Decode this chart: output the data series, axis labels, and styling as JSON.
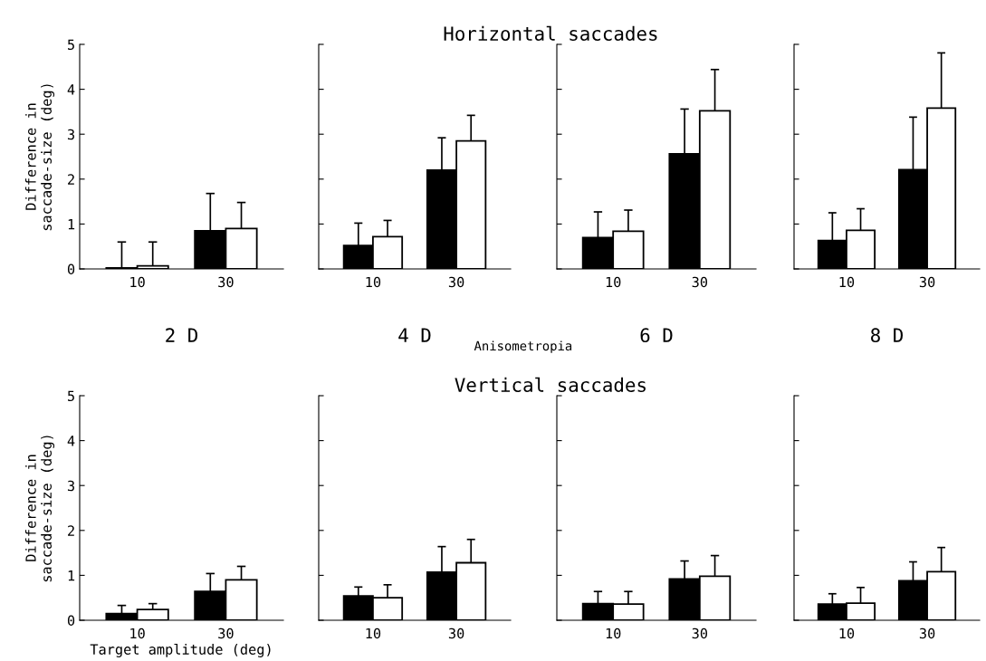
{
  "chart_data": [
    {
      "type": "bar",
      "xlabel": "2 D",
      "ylabel": "Difference in\nsaccade-size (deg)",
      "categories": [
        "10",
        "30"
      ],
      "ylim": [
        0,
        5
      ],
      "yticks": [
        0,
        1,
        2,
        3,
        4,
        5
      ],
      "series": [
        {
          "color": "#000000",
          "values": [
            0.02,
            0.85
          ],
          "errors": [
            [
              0.02,
              0.6
            ],
            [
              0.85,
              1.68
            ]
          ]
        },
        {
          "color": "#ffffff",
          "values": [
            0.07,
            0.9
          ],
          "errors": [
            [
              0.07,
              0.6
            ],
            [
              0.9,
              1.48
            ]
          ]
        }
      ]
    },
    {
      "type": "bar",
      "xlabel": "4 D",
      "annotations": [
        "Anisometropia"
      ],
      "categories": [
        "10",
        "30"
      ],
      "ylim": [
        0,
        5
      ],
      "yticks": [
        0,
        1,
        2,
        3,
        4,
        5
      ],
      "tick_labels": "x",
      "series": [
        {
          "color": "#000000",
          "values": [
            0.52,
            2.2
          ],
          "errors": [
            [
              0.52,
              1.02
            ],
            [
              2.2,
              2.92
            ]
          ]
        },
        {
          "color": "#ffffff",
          "values": [
            0.72,
            2.85
          ],
          "errors": [
            [
              0.72,
              1.08
            ],
            [
              2.85,
              3.42
            ]
          ]
        }
      ]
    },
    {
      "type": "bar",
      "title": "Horizontal saccades",
      "xlabel": "6 D",
      "categories": [
        "10",
        "30"
      ],
      "ylim": [
        0,
        5
      ],
      "yticks": [
        0,
        1,
        2,
        3,
        4,
        5
      ],
      "tick_labels": "x",
      "series": [
        {
          "color": "#000000",
          "values": [
            0.7,
            2.56
          ],
          "errors": [
            [
              0.7,
              1.27
            ],
            [
              2.56,
              3.56
            ]
          ]
        },
        {
          "color": "#ffffff",
          "values": [
            0.84,
            3.52
          ],
          "errors": [
            [
              0.84,
              1.31
            ],
            [
              3.52,
              4.44
            ]
          ]
        }
      ]
    },
    {
      "type": "bar",
      "xlabel": "8 D",
      "categories": [
        "10",
        "30"
      ],
      "ylim": [
        0,
        5
      ],
      "yticks": [
        0,
        1,
        2,
        3,
        4,
        5
      ],
      "tick_labels": "x",
      "series": [
        {
          "color": "#000000",
          "values": [
            0.63,
            2.21
          ],
          "errors": [
            [
              0.63,
              1.25
            ],
            [
              2.21,
              3.38
            ]
          ]
        },
        {
          "color": "#ffffff",
          "values": [
            0.86,
            3.58
          ],
          "errors": [
            [
              0.86,
              1.34
            ],
            [
              3.58,
              4.81
            ]
          ]
        }
      ]
    },
    {
      "type": "bar",
      "xlabel": "Target amplitude (deg)",
      "ylabel": "Difference in\nsaccade-size (deg)",
      "categories": [
        "10",
        "30"
      ],
      "ylim": [
        0,
        5
      ],
      "yticks": [
        0,
        1,
        2,
        3,
        4,
        5
      ],
      "series": [
        {
          "color": "#000000",
          "values": [
            0.15,
            0.64
          ],
          "errors": [
            [
              0.15,
              0.33
            ],
            [
              0.64,
              1.04
            ]
          ]
        },
        {
          "color": "#ffffff",
          "values": [
            0.24,
            0.9
          ],
          "errors": [
            [
              0.24,
              0.37
            ],
            [
              0.9,
              1.2
            ]
          ]
        }
      ]
    },
    {
      "type": "bar",
      "categories": [
        "10",
        "30"
      ],
      "ylim": [
        0,
        5
      ],
      "yticks": [
        0,
        1,
        2,
        3,
        4,
        5
      ],
      "tick_labels": "x",
      "series": [
        {
          "color": "#000000",
          "values": [
            0.54,
            1.07
          ],
          "errors": [
            [
              0.54,
              0.74
            ],
            [
              1.07,
              1.64
            ]
          ]
        },
        {
          "color": "#ffffff",
          "values": [
            0.5,
            1.28
          ],
          "errors": [
            [
              0.5,
              0.79
            ],
            [
              1.28,
              1.8
            ]
          ]
        }
      ]
    },
    {
      "type": "bar",
      "categories": [
        "10",
        "30"
      ],
      "ylim": [
        0,
        5
      ],
      "yticks": [
        0,
        1,
        2,
        3,
        4,
        5
      ],
      "tick_labels": "x",
      "title": "Vertical saccades",
      "series": [
        {
          "color": "#000000",
          "values": [
            0.37,
            0.92
          ],
          "errors": [
            [
              0.37,
              0.64
            ],
            [
              0.92,
              1.32
            ]
          ]
        },
        {
          "color": "#ffffff",
          "values": [
            0.36,
            0.98
          ],
          "errors": [
            [
              0.36,
              0.64
            ],
            [
              0.98,
              1.44
            ]
          ]
        }
      ]
    },
    {
      "type": "bar",
      "categories": [
        "10",
        "30"
      ],
      "ylim": [
        0,
        5
      ],
      "yticks": [
        0,
        1,
        2,
        3,
        4,
        5
      ],
      "tick_labels": "x",
      "series": [
        {
          "color": "#000000",
          "values": [
            0.36,
            0.88
          ],
          "errors": [
            [
              0.36,
              0.59
            ],
            [
              0.88,
              1.3
            ]
          ]
        },
        {
          "color": "#ffffff",
          "values": [
            0.38,
            1.08
          ],
          "errors": [
            [
              0.38,
              0.73
            ],
            [
              1.08,
              1.62
            ]
          ]
        }
      ]
    }
  ]
}
